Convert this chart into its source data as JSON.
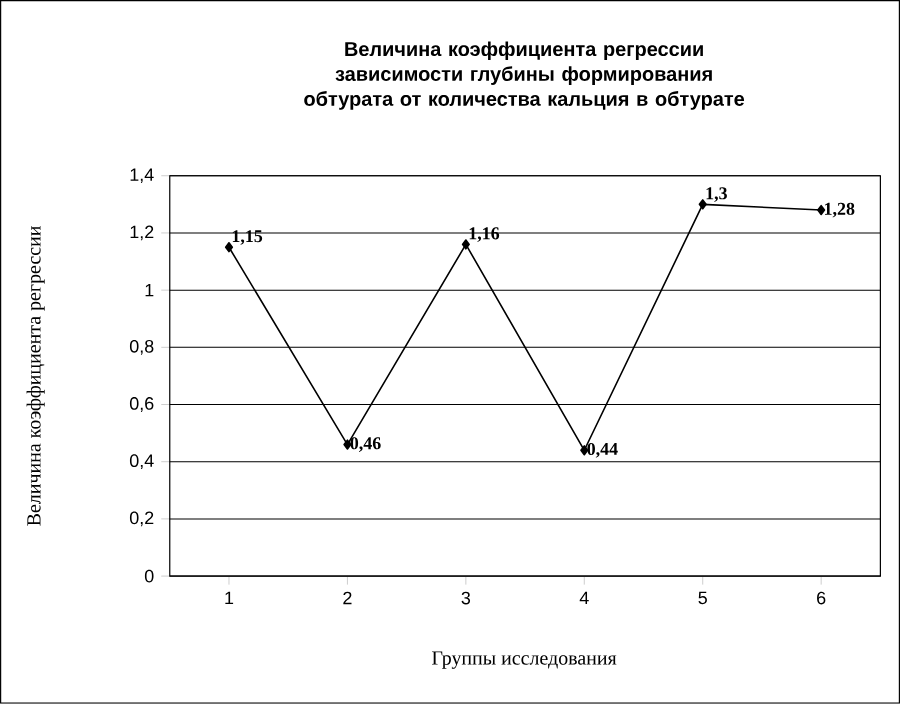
{
  "chart_data": {
    "type": "line",
    "title": "Величина коэффициента регрессии зависимости глубины формирования обтурата от количества кальция в обтурате",
    "xlabel": "Группы исследования",
    "ylabel": "Величина коэффициента регрессии",
    "categories": [
      "1",
      "2",
      "3",
      "4",
      "5",
      "6"
    ],
    "series": [
      {
        "color": "#000000",
        "values": [
          1.15,
          0.46,
          1.16,
          0.44,
          1.3,
          1.28
        ],
        "value_labels": [
          "1,15",
          "0,46",
          "1,16",
          "0,44",
          "1,3",
          "1,28"
        ]
      }
    ],
    "ylim": [
      0,
      1.4
    ],
    "yticks": [
      0,
      {
        "value": 0.2,
        "label": "0,2"
      },
      {
        "value": 0.4,
        "label": "0,4"
      },
      {
        "value": 0.6,
        "label": "0,6"
      },
      {
        "value": 0.8,
        "label": "0,8"
      },
      1,
      {
        "value": 1.2,
        "label": "1,2"
      },
      {
        "value": 1.4,
        "label": "1,4"
      }
    ],
    "grid": "y",
    "marker": "diamond",
    "line_style": "solid"
  }
}
